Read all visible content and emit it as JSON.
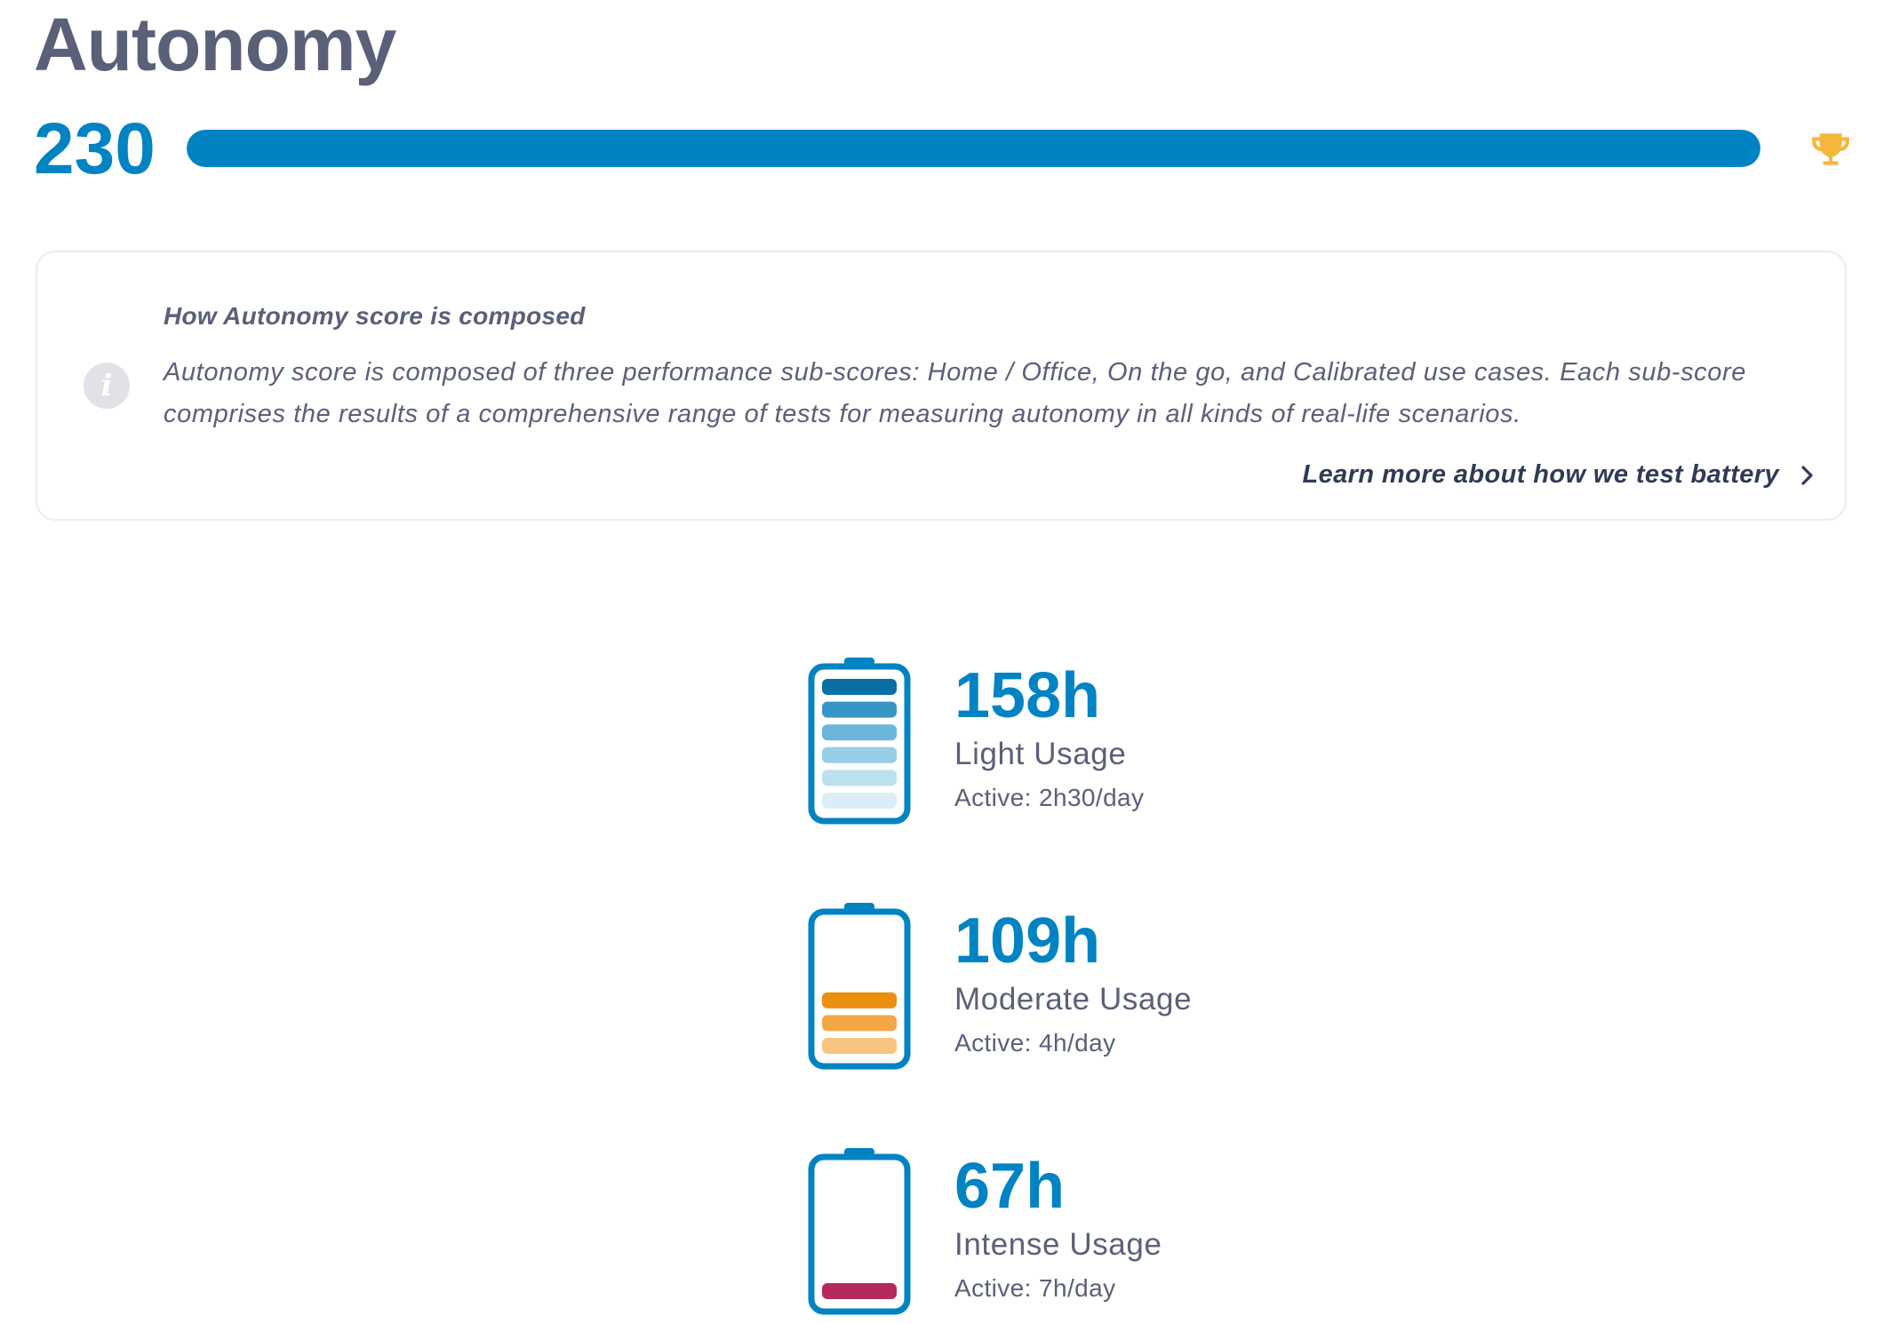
{
  "page": {
    "title": "Autonomy"
  },
  "score": {
    "value": "230",
    "progress_fraction": 1.0,
    "bar_color": "#0083c3",
    "track_color": "#e3eef5",
    "badge_icon": "trophy-icon",
    "badge_color": "#f5b63c"
  },
  "info": {
    "icon": "info-icon",
    "heading": "How Autonomy score is composed",
    "body": "Autonomy score is composed of three performance sub-scores: Home / Office, On the go, and Calibrated use cases. Each sub-score comprises the results of a comprehensive range of tests for measuring autonomy in all kinds of real-life scenarios.",
    "link_label": "Learn more about how we test battery",
    "link_icon": "chevron-right-icon"
  },
  "usages": [
    {
      "hours": "158h",
      "label": "Light Usage",
      "active": "Active: 2h30/day",
      "battery_icon": "battery-full-icon",
      "level_bars": 6,
      "bar_colors": [
        "#0a6fa2",
        "#3896c6",
        "#6cb6d9",
        "#97cde6",
        "#bde0ef",
        "#dbeef7"
      ]
    },
    {
      "hours": "109h",
      "label": "Moderate Usage",
      "active": "Active: 4h/day",
      "battery_icon": "battery-half-icon",
      "level_bars": 3,
      "bar_colors": [
        "#ec8f0f",
        "#f3a845",
        "#f8c47f"
      ]
    },
    {
      "hours": "67h",
      "label": "Intense Usage",
      "active": "Active: 7h/day",
      "battery_icon": "battery-low-icon",
      "level_bars": 1,
      "bar_colors": [
        "#b52a5e"
      ]
    }
  ],
  "colors": {
    "accent": "#0083c3",
    "text": "#5b6079",
    "battery_outline": "#0083c3"
  }
}
